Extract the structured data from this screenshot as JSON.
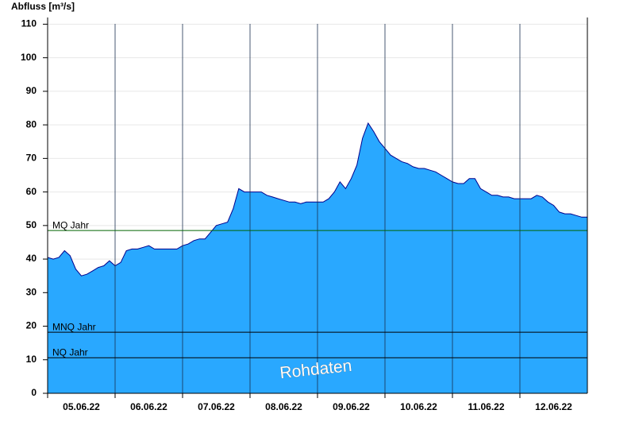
{
  "chart_data": {
    "type": "area",
    "title": "Abfluss [m³/s]",
    "categories": [
      null,
      null,
      null,
      null,
      null,
      null,
      "05.06.22",
      null,
      null,
      null,
      null,
      null,
      null,
      null,
      null,
      null,
      null,
      null,
      "06.06.22",
      null,
      null,
      null,
      null,
      null,
      null,
      null,
      null,
      null,
      null,
      null,
      "07.06.22",
      null,
      null,
      null,
      null,
      null,
      null,
      null,
      null,
      null,
      null,
      null,
      "08.06.22",
      null,
      null,
      null,
      null,
      null,
      null,
      null,
      null,
      null,
      null,
      null,
      "09.06.22",
      null,
      null,
      null,
      null,
      null,
      null,
      null,
      null,
      null,
      null,
      null,
      "10.06.22",
      null,
      null,
      null,
      null,
      null,
      null,
      null,
      null,
      null,
      null,
      null,
      "11.06.22",
      null,
      null,
      null,
      null,
      null,
      null,
      null,
      null,
      null,
      null,
      null,
      "12.06.22",
      null,
      null,
      null,
      null,
      null
    ],
    "series": [
      {
        "color": "#29a8ff",
        "line_color": "#00008b",
        "values": [
          40.5,
          40,
          40.5,
          42.5,
          41,
          37,
          35,
          35.5,
          36.5,
          37.5,
          38,
          39.5,
          38,
          39,
          42.5,
          43,
          43,
          43.5,
          44,
          43,
          43,
          43,
          43,
          43,
          44,
          44.5,
          45.5,
          46,
          46,
          48,
          50,
          50.5,
          51,
          55,
          61,
          60,
          60,
          60,
          60,
          59,
          58.5,
          58,
          57.5,
          57,
          57,
          56.5,
          57,
          57,
          57,
          57,
          58,
          60,
          63,
          61,
          64,
          68,
          76,
          80.5,
          78,
          75,
          73,
          71,
          70,
          69,
          68.5,
          67.5,
          67,
          67,
          66.5,
          66,
          65,
          64,
          63,
          62.5,
          62.5,
          64,
          64,
          61,
          60,
          59,
          59,
          58.5,
          58.5,
          58,
          58,
          58,
          58,
          59,
          58.5,
          57,
          56,
          54,
          53.5,
          53.5,
          53,
          52.5
        ]
      }
    ],
    "ylim": [
      0,
      112
    ],
    "yticks": [
      0,
      10,
      20,
      30,
      40,
      50,
      60,
      70,
      80,
      90,
      100,
      110
    ],
    "grid": true,
    "reference_lines": [
      {
        "label": "MQ Jahr",
        "value": 48.5,
        "color": "#006400"
      },
      {
        "label": "MNQ Jahr",
        "value": 18.2,
        "color": "#000000"
      },
      {
        "label": "NQ Jahr",
        "value": 10.6,
        "color": "#000000"
      }
    ],
    "watermark": "Rohdaten"
  }
}
